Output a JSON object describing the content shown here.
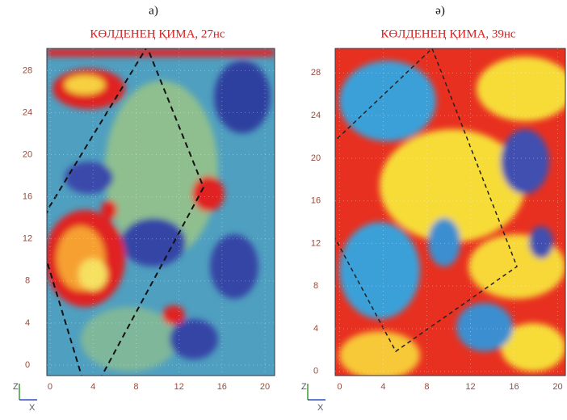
{
  "chart_data": [
    {
      "type": "heatmap",
      "label": "а)",
      "title": "КӨЛДЕНЕҢ ҚИМА, 27нс",
      "xlim": [
        -0.3,
        20.9
      ],
      "xticks": [
        0,
        4,
        8,
        12,
        16,
        20
      ],
      "ylim": [
        -1,
        30.1
      ],
      "yticks": [
        0,
        4,
        8,
        12,
        16,
        20,
        24,
        28
      ],
      "x_axis_label": "X",
      "z_axis_label": "Z",
      "grid": true
    },
    {
      "type": "heatmap",
      "label": "ә)",
      "title": "КӨЛДЕНЕҢ ҚИМА, 39нс",
      "xlim": [
        -0.4,
        20.7
      ],
      "xticks": [
        0,
        4,
        8,
        12,
        16,
        20
      ],
      "ylim": [
        -0.4,
        30.3
      ],
      "yticks": [
        0,
        4,
        8,
        12,
        16,
        20,
        24,
        28
      ],
      "x_axis_label": "X",
      "z_axis_label": "Z",
      "grid": true
    }
  ]
}
